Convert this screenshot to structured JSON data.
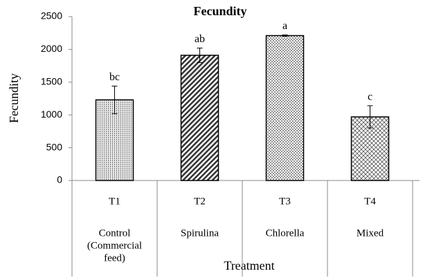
{
  "chart_data": {
    "type": "bar",
    "title": "Fecundity",
    "categories": [
      "T1",
      "T2",
      "T3",
      "T4"
    ],
    "category_descriptions": [
      [
        "Control",
        "(Commercial",
        "feed)"
      ],
      [
        "Spirulina"
      ],
      [
        "Chlorella"
      ],
      [
        "Mixed"
      ]
    ],
    "values": [
      1230,
      1910,
      2210,
      970
    ],
    "errors": [
      210,
      110,
      10,
      170
    ],
    "significance_labels": [
      "bc",
      "ab",
      "a",
      "c"
    ],
    "y_label": "Fecundity",
    "x_label": "Treatment",
    "ylim": [
      0,
      2500
    ],
    "yticks": [
      0,
      500,
      1000,
      1500,
      2000,
      2500
    ]
  }
}
